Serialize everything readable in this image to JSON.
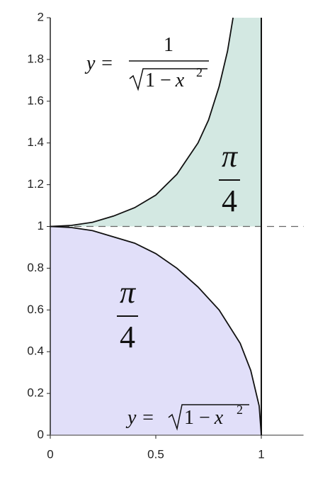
{
  "chart_data": {
    "type": "line",
    "series": [
      {
        "x": [
          0,
          0.1,
          0.2,
          0.3,
          0.4,
          0.5,
          0.6,
          0.7,
          0.8,
          0.9,
          0.95,
          0.99,
          1
        ],
        "values": [
          1,
          0.995,
          0.98,
          0.95,
          0.92,
          0.87,
          0.8,
          0.71,
          0.6,
          0.44,
          0.31,
          0.14,
          0
        ],
        "color": "#111111",
        "fill": "#e1dff9"
      },
      {
        "x": [
          0,
          0.1,
          0.2,
          0.3,
          0.4,
          0.5,
          0.6,
          0.7,
          0.75,
          0.8,
          0.84,
          0.866
        ],
        "values": [
          1,
          1.005,
          1.02,
          1.05,
          1.09,
          1.15,
          1.25,
          1.4,
          1.51,
          1.67,
          1.84,
          2
        ],
        "color": "#111111",
        "fill": "#d3e8e2"
      }
    ],
    "xlim": [
      0,
      1.2
    ],
    "ylim": [
      0,
      2
    ],
    "xticks": [
      0,
      0.5,
      1
    ],
    "yticks": [
      0,
      0.2,
      0.4,
      0.6,
      0.8,
      1,
      1.2,
      1.4,
      1.6,
      1.8,
      2
    ],
    "vline": 1,
    "hline": 1,
    "annotations": {
      "upper_formula": {
        "lhs": "y =",
        "numerator": "1",
        "radicand_const": "1 −",
        "radicand_var": "x",
        "exponent": "2"
      },
      "lower_formula": {
        "lhs": "y =",
        "radicand_const": "1 −",
        "radicand_var": "x",
        "exponent": "2"
      },
      "upper_area": {
        "numerator": "π",
        "denominator": "4"
      },
      "lower_area": {
        "numerator": "π",
        "denominator": "4"
      }
    }
  }
}
